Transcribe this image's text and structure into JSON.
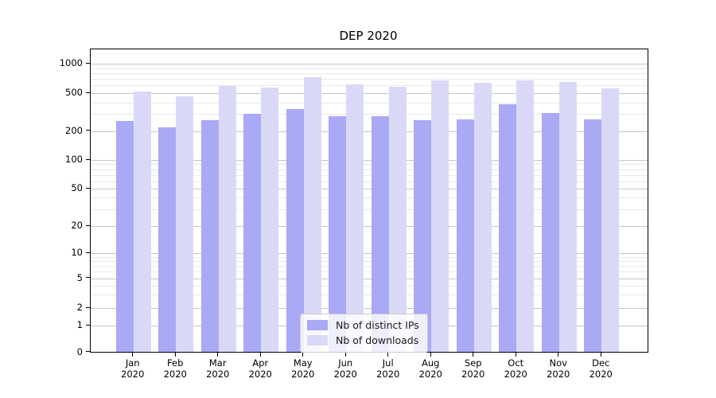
{
  "chart_data": {
    "type": "bar",
    "title": "DEP 2020",
    "categories": [
      "Jan 2020",
      "Feb 2020",
      "Mar 2020",
      "Apr 2020",
      "May 2020",
      "Jun 2020",
      "Jul 2020",
      "Aug 2020",
      "Sep 2020",
      "Oct 2020",
      "Nov 2020",
      "Dec 2020"
    ],
    "series": [
      {
        "name": "Nb of distinct IPs",
        "color": "#a9a9f5",
        "values": [
          255,
          218,
          262,
          300,
          340,
          285,
          285,
          262,
          267,
          380,
          307,
          264
        ]
      },
      {
        "name": "Nb of downloads",
        "color": "#d9d9f7",
        "values": [
          520,
          465,
          590,
          565,
          730,
          620,
          580,
          680,
          637,
          675,
          650,
          562
        ]
      }
    ],
    "yscale": "symlog",
    "yticks": [
      0,
      1,
      2,
      5,
      10,
      20,
      50,
      100,
      200,
      500,
      1000
    ],
    "ytick_labels": [
      "0",
      "1",
      "2",
      "5",
      "10",
      "20",
      "50",
      "100",
      "200",
      "500",
      "1000"
    ],
    "ylim": [
      0,
      1400
    ],
    "grid": "horizontal major and minor gridlines",
    "legend_position": "lower center",
    "xlabel": "",
    "ylabel": ""
  },
  "legend": {
    "items": [
      {
        "label": "Nb of distinct IPs",
        "color": "#a9a9f5"
      },
      {
        "label": "Nb of downloads",
        "color": "#d9d9f7"
      }
    ]
  }
}
